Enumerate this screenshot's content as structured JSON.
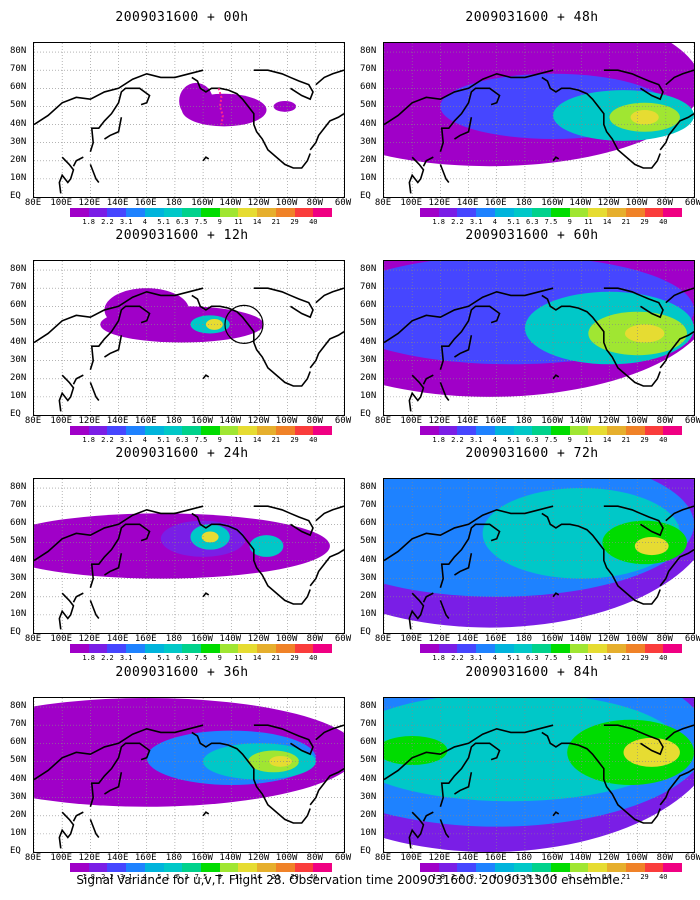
{
  "panels": [
    {
      "title": "2009031600 + 00h",
      "lead_hours": 0
    },
    {
      "title": "2009031600 + 48h",
      "lead_hours": 48
    },
    {
      "title": "2009031600 + 12h",
      "lead_hours": 12
    },
    {
      "title": "2009031600 + 60h",
      "lead_hours": 60
    },
    {
      "title": "2009031600 + 24h",
      "lead_hours": 24
    },
    {
      "title": "2009031600 + 72h",
      "lead_hours": 72
    },
    {
      "title": "2009031600 + 36h",
      "lead_hours": 36
    },
    {
      "title": "2009031600 + 84h",
      "lead_hours": 84
    }
  ],
  "lat_labels": [
    "80N",
    "70N",
    "60N",
    "50N",
    "40N",
    "30N",
    "20N",
    "10N",
    "EQ"
  ],
  "lon_labels": [
    "80E",
    "100E",
    "120E",
    "140E",
    "160E",
    "180",
    "160W",
    "140W",
    "120W",
    "100W",
    "80W",
    "60W"
  ],
  "colorbar": {
    "labels": [
      "1.8",
      "2.2",
      "3.1",
      "4",
      "5.1",
      "6.3",
      "7.5",
      "9",
      "11",
      "14",
      "21",
      "29",
      "40"
    ],
    "colors": [
      "#a000c8",
      "#7a1ee6",
      "#4646ff",
      "#1e82ff",
      "#00b4dc",
      "#00c8c8",
      "#00d28c",
      "#00dc00",
      "#a0e632",
      "#e6dc32",
      "#e6af2d",
      "#f08228",
      "#fa3c3c",
      "#f00082"
    ]
  },
  "caption": "Signal Variance for u,v,T. Flight 28. Observation time 2009031600. 2009031300 ensemble."
}
